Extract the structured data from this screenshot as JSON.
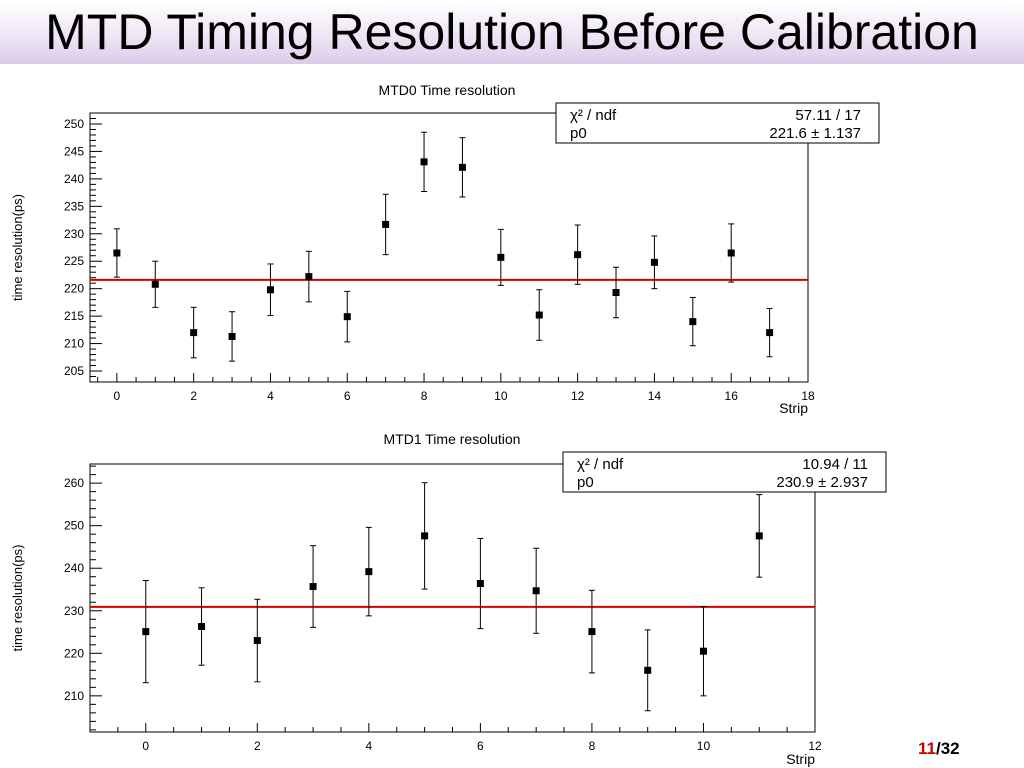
{
  "slide": {
    "title": "MTD Timing Resolution Before Calibration",
    "page_current": "11",
    "page_separator": "/",
    "page_total": "32",
    "accent_color": "#d40000"
  },
  "chart_data": [
    {
      "type": "scatter",
      "title": "MTD0 Time resolution",
      "xlabel": "Strip",
      "ylabel": "time resolution(ps)",
      "xlim": [
        -0.7,
        18
      ],
      "ylim": [
        203,
        252
      ],
      "xticks": [
        0,
        2,
        4,
        6,
        8,
        10,
        12,
        14,
        16,
        18
      ],
      "yticks": [
        205,
        210,
        215,
        220,
        225,
        230,
        235,
        240,
        245,
        250
      ],
      "grid": false,
      "series": [
        {
          "x": [
            0,
            1,
            2,
            3,
            4,
            5,
            6,
            7,
            8,
            9,
            10,
            11,
            12,
            13,
            14,
            15,
            16,
            17
          ],
          "y": [
            226.5,
            220.8,
            212.0,
            211.3,
            219.8,
            222.2,
            214.9,
            231.7,
            243.1,
            242.1,
            225.7,
            215.2,
            226.2,
            219.3,
            224.8,
            214.0,
            226.5,
            212.0
          ],
          "err": [
            4.4,
            4.2,
            4.6,
            4.5,
            4.7,
            4.6,
            4.6,
            5.5,
            5.4,
            5.4,
            5.1,
            4.6,
            5.4,
            4.6,
            4.8,
            4.4,
            5.3,
            4.4
          ]
        }
      ],
      "fit": {
        "value": 221.6,
        "color": "#d40000"
      },
      "stats": {
        "row1_label": "χ² / ndf",
        "row1_value": "57.11 / 17",
        "row2_label": "p0",
        "row2_value": "221.6 ± 1.137"
      }
    },
    {
      "type": "scatter",
      "title": "MTD1 Time resolution",
      "xlabel": "Strip",
      "ylabel": "time resolution(ps)",
      "xlim": [
        -1,
        12
      ],
      "ylim": [
        201.5,
        264.5
      ],
      "xticks": [
        0,
        2,
        4,
        6,
        8,
        10,
        12
      ],
      "yticks": [
        210,
        220,
        230,
        240,
        250,
        260
      ],
      "grid": false,
      "series": [
        {
          "x": [
            0,
            1,
            2,
            3,
            4,
            5,
            6,
            7,
            8,
            9,
            10,
            11
          ],
          "y": [
            225.1,
            226.3,
            223.0,
            235.7,
            239.2,
            247.6,
            236.4,
            234.7,
            225.1,
            216.0,
            220.5,
            247.6
          ],
          "err": [
            12.0,
            9.1,
            9.7,
            9.6,
            10.4,
            12.5,
            10.6,
            10.0,
            9.7,
            9.5,
            10.5,
            9.7
          ]
        }
      ],
      "fit": {
        "value": 230.9,
        "color": "#d40000"
      },
      "stats": {
        "row1_label": "χ² / ndf",
        "row1_value": "10.94 / 11",
        "row2_label": "p0",
        "row2_value": "230.9 ± 2.937"
      }
    }
  ]
}
